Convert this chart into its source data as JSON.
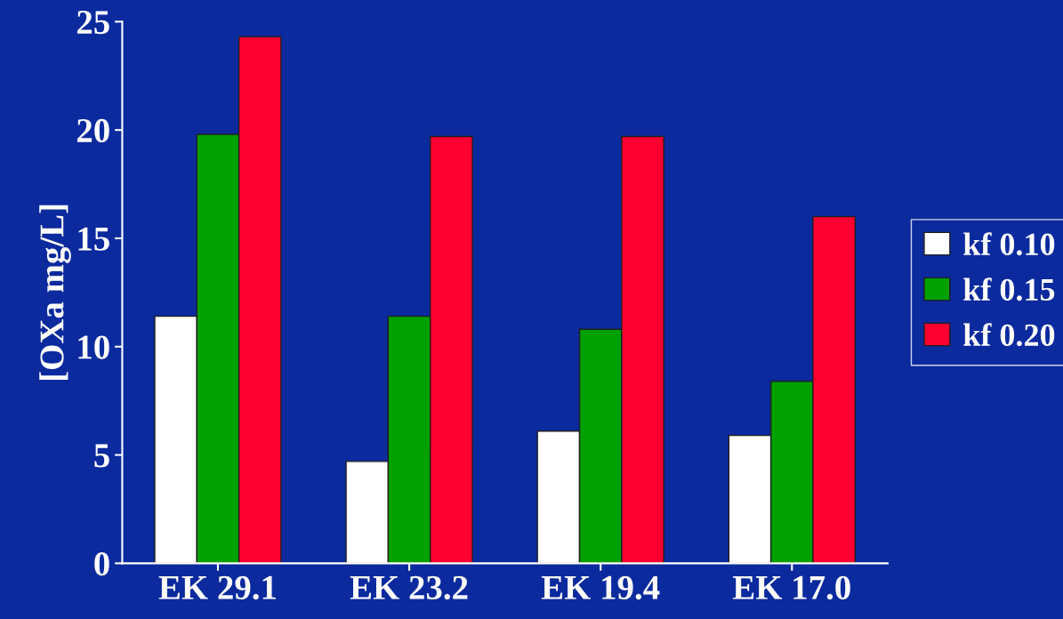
{
  "chart_data": {
    "type": "bar",
    "ylabel": "[OXa mg/L]",
    "categories": [
      "EK 29.1",
      "EK 23.2",
      "EK 19.4",
      "EK 17.0"
    ],
    "series": [
      {
        "name": "kf 0.10",
        "color": "#ffffff",
        "values": [
          11.4,
          4.7,
          6.1,
          5.9
        ]
      },
      {
        "name": "kf 0.15",
        "color": "#00a000",
        "values": [
          19.8,
          11.4,
          10.8,
          8.4
        ]
      },
      {
        "name": "kf 0.20",
        "color": "#ff0030",
        "values": [
          24.3,
          19.7,
          19.7,
          16.0
        ]
      }
    ],
    "ylim": [
      0,
      25
    ],
    "yticks": [
      0,
      5,
      10,
      15,
      20,
      25
    ],
    "grid": false,
    "legend": "right"
  }
}
